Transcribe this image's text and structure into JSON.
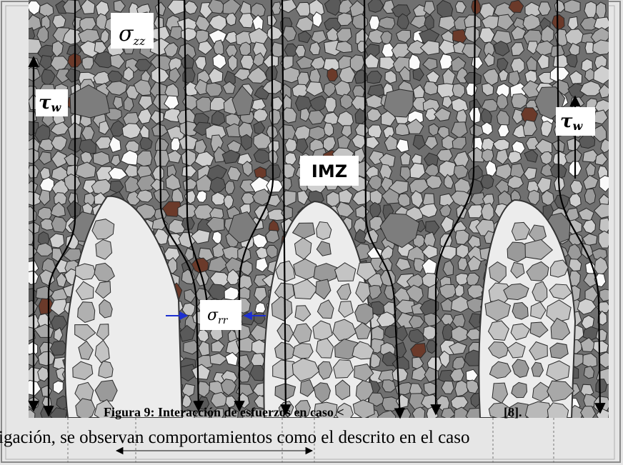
{
  "figure": {
    "labels": {
      "sigma_zz": "σ",
      "sigma_zz_sub": "zz",
      "tau_w_left": "τ",
      "tau_w_left_sub": "w",
      "tau_w_right": "τ",
      "tau_w_right_sub": "w",
      "imz": "IMZ",
      "sigma_rr": "σ",
      "sigma_rr_sub": "rr"
    }
  },
  "caption": {
    "text": "Figura 9: Interacción de esfuerzos en caso <",
    "reference": "[8]."
  },
  "body": {
    "line": "igación, se observan comportamientos como el descrito en el caso"
  }
}
